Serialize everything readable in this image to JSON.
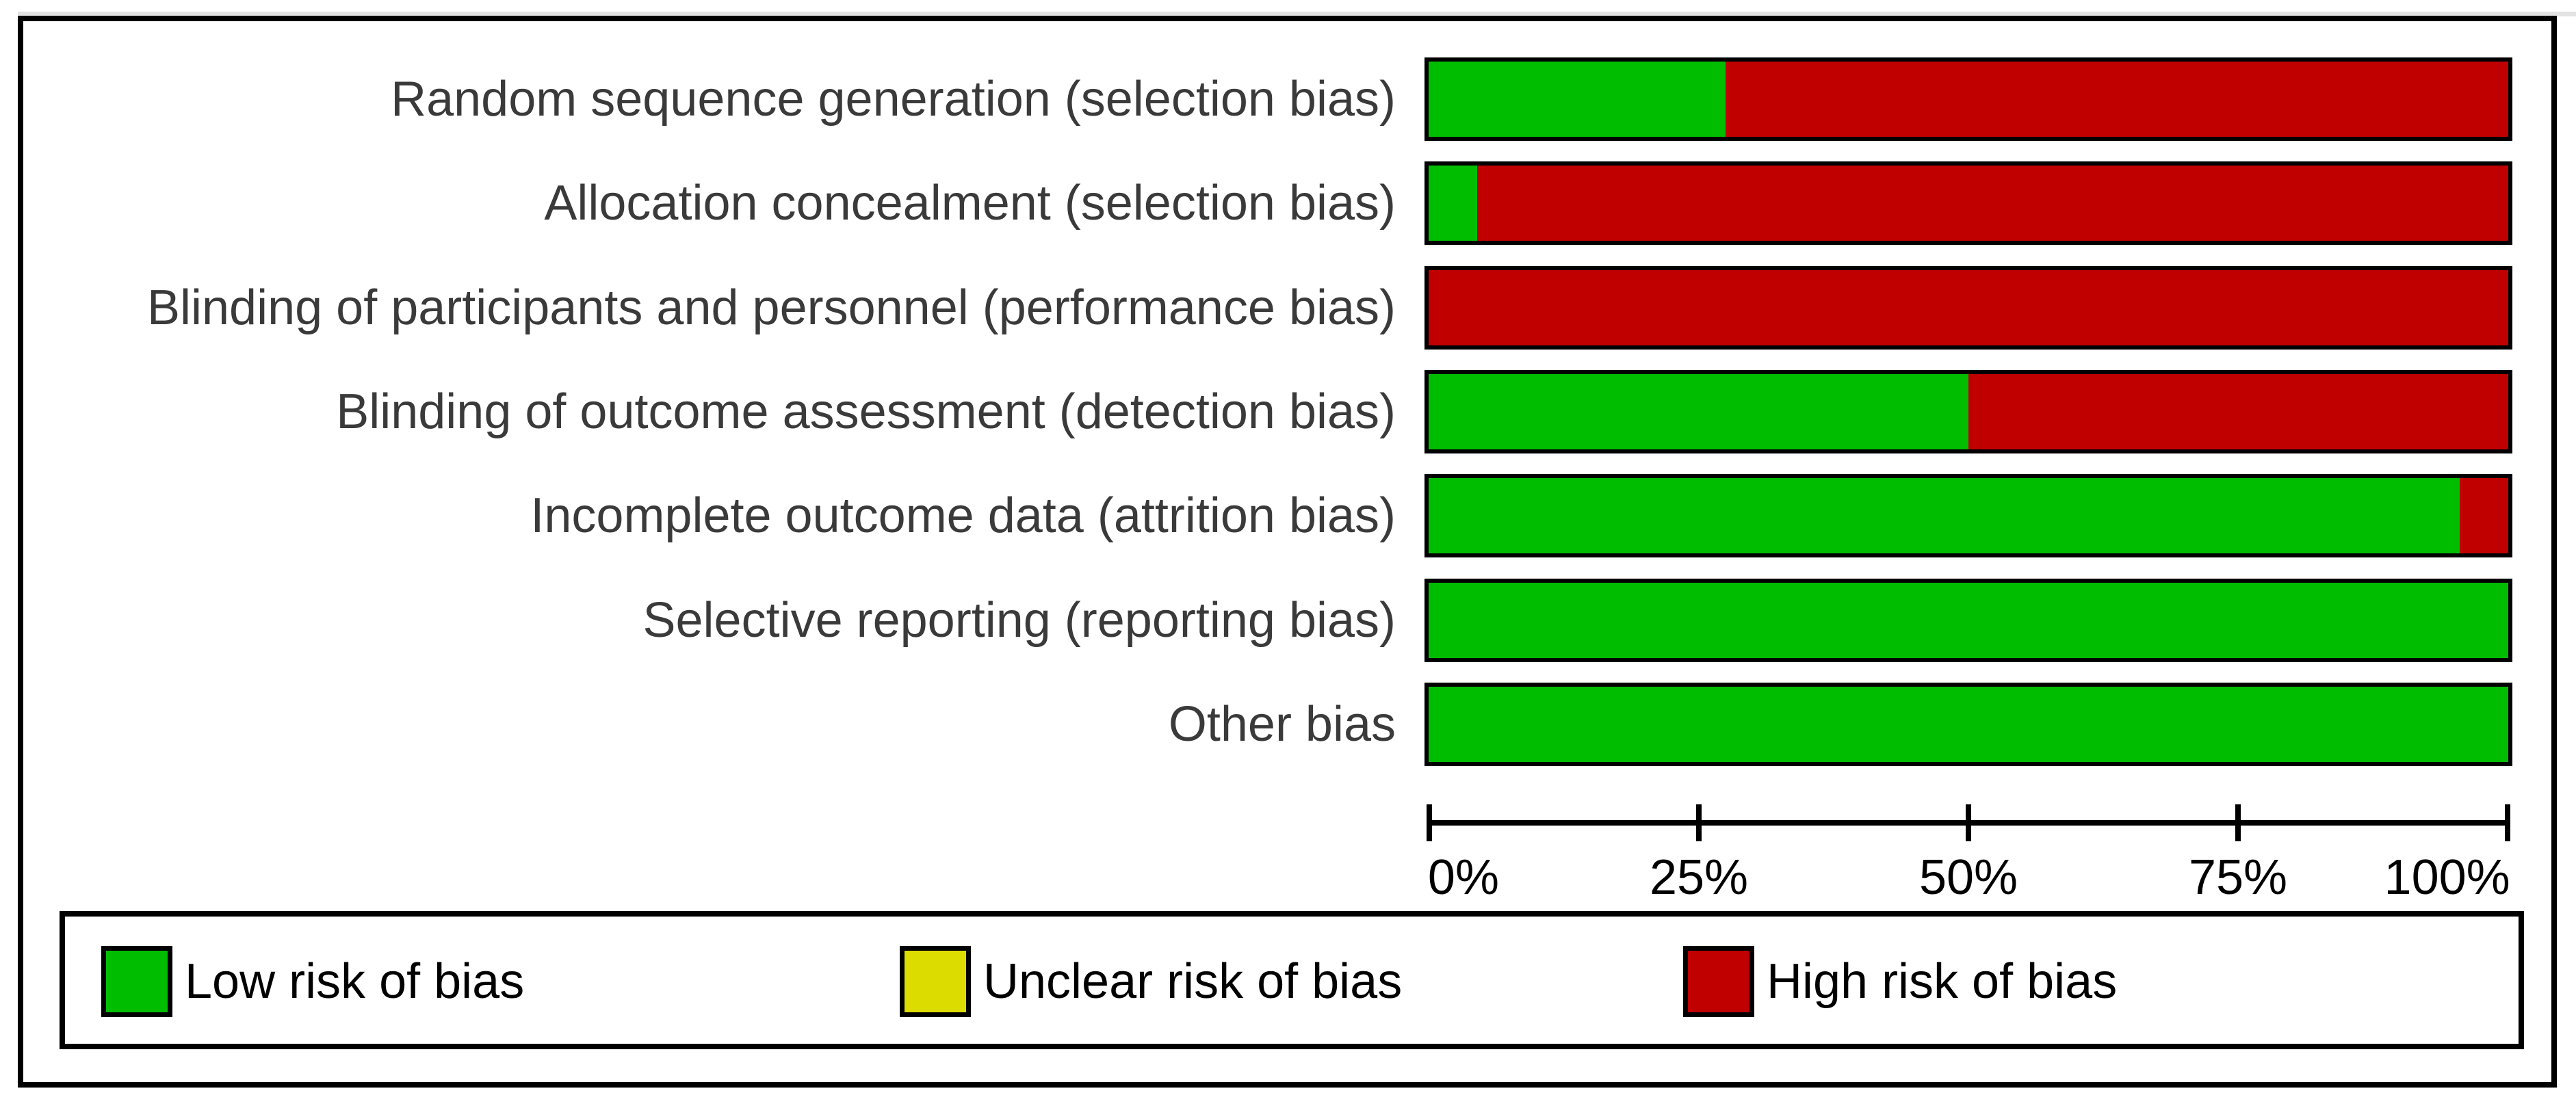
{
  "figure": {
    "background": "#ffffff",
    "border_color": "#000000",
    "label_text_color": "#3a3a3a"
  },
  "colors": {
    "low": "#00bd00",
    "unclear": "#dcdc00",
    "high": "#c00000"
  },
  "legend": {
    "items": [
      {
        "label": "Low risk of bias",
        "risk": "low",
        "color": "#00bd00"
      },
      {
        "label": "Unclear risk of bias",
        "risk": "unclear",
        "color": "#dcdc00"
      },
      {
        "label": "High risk of bias",
        "risk": "high",
        "color": "#c00000"
      }
    ]
  },
  "chart_data": {
    "type": "bar",
    "orientation": "horizontal",
    "stacked": true,
    "title": "",
    "xlabel": "",
    "ylabel": "",
    "categories": [
      "Random sequence generation (selection bias)",
      "Allocation concealment (selection bias)",
      "Blinding of participants and personnel (performance bias)",
      "Blinding of outcome assessment (detection bias)",
      "Incomplete outcome data (attrition bias)",
      "Selective reporting (reporting bias)",
      "Other bias"
    ],
    "series": [
      {
        "name": "Low risk of bias",
        "color": "#00bd00",
        "values": [
          27.5,
          4.5,
          0,
          50,
          95.5,
          100,
          100
        ]
      },
      {
        "name": "Unclear risk of bias",
        "color": "#dcdc00",
        "values": [
          0,
          0,
          0,
          0,
          0,
          0,
          0
        ]
      },
      {
        "name": "High risk of bias",
        "color": "#c00000",
        "values": [
          72.5,
          95.5,
          100,
          50,
          4.5,
          0,
          0
        ]
      }
    ],
    "x_ticks": [
      "0%",
      "25%",
      "50%",
      "75%",
      "100%"
    ],
    "xlim": [
      0,
      100
    ],
    "grid": false,
    "legend_position": "bottom"
  }
}
